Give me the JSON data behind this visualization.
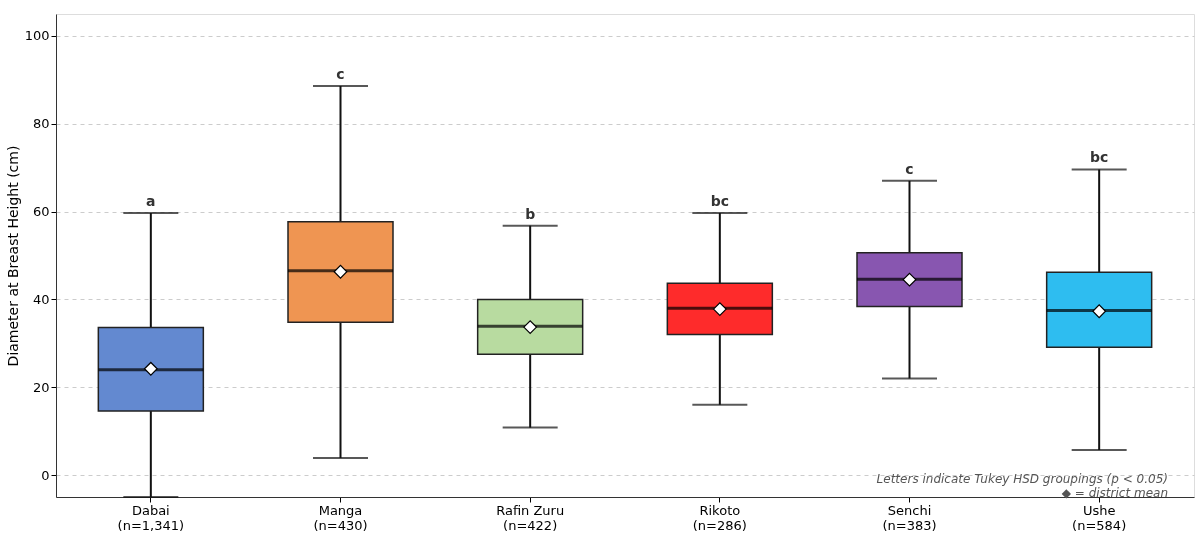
{
  "chart_data": {
    "type": "box",
    "categories": [
      "Dabai\n(n=1,341)",
      "Manga\n(n=430)",
      "Rafin Zuru\n(n=422)",
      "Rikoto\n(n=286)",
      "Senchi\n(n=383)",
      "Ushe\n(n=584)"
    ],
    "boxes": [
      {
        "low": -5,
        "q1": 14.6,
        "median": 24.0,
        "q3": 33.6,
        "high": 59.7,
        "mean": 24.2
      },
      {
        "low": 3.9,
        "q1": 34.8,
        "median": 46.5,
        "q3": 57.7,
        "high": 88.6,
        "mean": 46.3
      },
      {
        "low": 10.8,
        "q1": 27.5,
        "median": 33.9,
        "q3": 40.0,
        "high": 56.8,
        "mean": 33.7
      },
      {
        "low": 16.0,
        "q1": 32.0,
        "median": 38.0,
        "q3": 43.7,
        "high": 59.7,
        "mean": 37.8
      },
      {
        "low": 22.0,
        "q1": 38.4,
        "median": 44.6,
        "q3": 50.6,
        "high": 67.0,
        "mean": 44.5
      },
      {
        "low": 5.7,
        "q1": 29.1,
        "median": 37.5,
        "q3": 46.2,
        "high": 69.6,
        "mean": 37.3
      }
    ],
    "colors": [
      "#6389d0",
      "#ef9552",
      "#b8dba0",
      "#fe2b2b",
      "#8856b0",
      "#2ebdf0"
    ],
    "ylabel": "Diameter at Breast Height (cm)",
    "ylim": [
      -5,
      105
    ],
    "yticks": [
      0,
      20,
      40,
      60,
      80,
      100
    ],
    "grid": "y",
    "legend": false,
    "marker": "diamond",
    "annotations": [
      {
        "text": "a",
        "x": "Dabai\n(n=1,341)",
        "y": 59.7
      },
      {
        "text": "c",
        "x": "Manga\n(n=430)",
        "y": 88.6
      },
      {
        "text": "b",
        "x": "Rafin Zuru\n(n=422)",
        "y": 56.8
      },
      {
        "text": "bc",
        "x": "Rikoto\n(n=286)",
        "y": 59.7
      },
      {
        "text": "c",
        "x": "Senchi\n(n=383)",
        "y": 67.0
      },
      {
        "text": "bc",
        "x": "Ushe\n(n=584)",
        "y": 69.6
      },
      "Letters indicate Tukey HSD groupings (p < 0.05)",
      "◆ = district mean"
    ]
  }
}
